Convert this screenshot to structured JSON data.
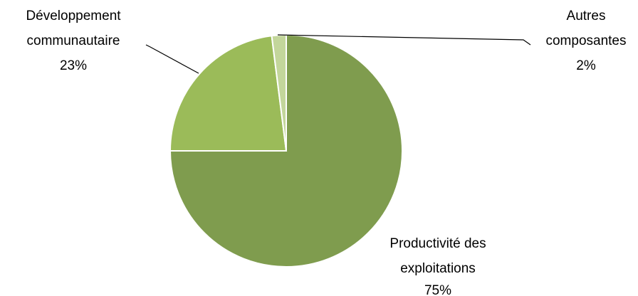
{
  "chart_data": {
    "type": "pie",
    "slices": [
      {
        "label_lines": [
          "Productivité des",
          "exploitations"
        ],
        "value_label": "75%",
        "value": 75,
        "color": "#7f9c4e"
      },
      {
        "label_lines": [
          "Développement",
          "communautaire"
        ],
        "value_label": "23%",
        "value": 23,
        "color": "#9bbb59"
      },
      {
        "label_lines": [
          "Autres",
          "composantes"
        ],
        "value_label": "2%",
        "value": 2,
        "color": "#c3d69b"
      }
    ]
  }
}
